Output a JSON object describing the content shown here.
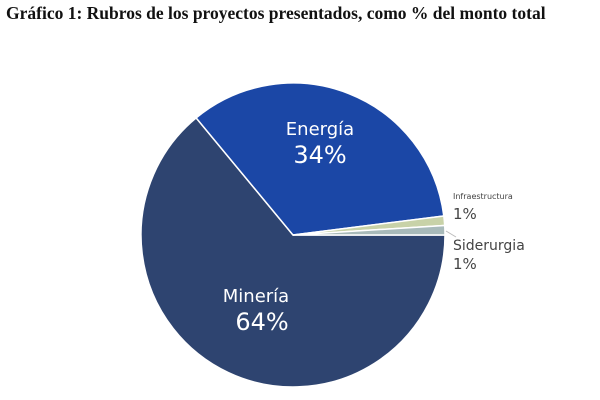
{
  "chart_data": {
    "type": "pie",
    "title": "Gráfico 1: Rubros de los proyectos presentados, como % del monto total",
    "slices": [
      {
        "name": "Minería",
        "value": 64,
        "label": "64%",
        "color": "#2e4470",
        "label_color": "#ffffff"
      },
      {
        "name": "Energía",
        "value": 34,
        "label": "34%",
        "color": "#1b47a6",
        "label_color": "#ffffff"
      },
      {
        "name": "Infraestructura",
        "value": 1,
        "label": "1%",
        "color": "#c8d2a8",
        "label_color": "#444444"
      },
      {
        "name": "Siderurgia",
        "value": 1,
        "label": "1%",
        "color": "#a8baba",
        "label_color": "#444444"
      }
    ]
  }
}
